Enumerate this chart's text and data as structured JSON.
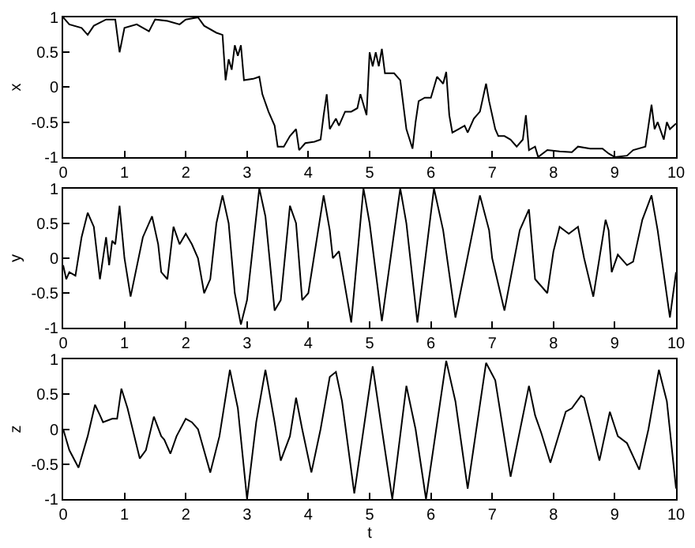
{
  "chart_data": [
    {
      "type": "line",
      "ylabel": "x",
      "xlim": [
        0,
        10
      ],
      "ylim": [
        -1,
        1
      ],
      "xticks": [
        0,
        1,
        2,
        3,
        4,
        5,
        6,
        7,
        8,
        9,
        10
      ],
      "yticks": [
        -1,
        -0.5,
        0,
        0.5,
        1
      ],
      "x": [
        0,
        0.1,
        0.3,
        0.4,
        0.5,
        0.7,
        0.85,
        0.92,
        1.0,
        1.2,
        1.4,
        1.5,
        1.7,
        1.9,
        2.0,
        2.2,
        2.3,
        2.5,
        2.6,
        2.65,
        2.7,
        2.75,
        2.8,
        2.85,
        2.9,
        2.95,
        3.1,
        3.2,
        3.25,
        3.35,
        3.45,
        3.5,
        3.6,
        3.7,
        3.8,
        3.85,
        3.95,
        4.1,
        4.2,
        4.25,
        4.3,
        4.35,
        4.45,
        4.5,
        4.6,
        4.7,
        4.8,
        4.85,
        4.95,
        5.0,
        5.05,
        5.1,
        5.15,
        5.2,
        5.25,
        5.4,
        5.5,
        5.6,
        5.7,
        5.75,
        5.8,
        5.9,
        6.0,
        6.1,
        6.2,
        6.25,
        6.3,
        6.35,
        6.45,
        6.55,
        6.6,
        6.7,
        6.8,
        6.9,
        6.95,
        7.05,
        7.1,
        7.2,
        7.3,
        7.4,
        7.5,
        7.55,
        7.6,
        7.7,
        7.75,
        7.9,
        8.1,
        8.3,
        8.4,
        8.6,
        8.8,
        8.9,
        9.0,
        9.2,
        9.3,
        9.5,
        9.6,
        9.65,
        9.7,
        9.8,
        9.85,
        9.9,
        10
      ],
      "series": [
        {
          "color": "#000000",
          "values": [
            1,
            0.9,
            0.85,
            0.75,
            0.88,
            0.97,
            0.97,
            0.5,
            0.85,
            0.9,
            0.8,
            0.97,
            0.95,
            0.9,
            0.97,
            1.0,
            0.88,
            0.78,
            0.75,
            0.1,
            0.4,
            0.25,
            0.6,
            0.45,
            0.6,
            0.1,
            0.12,
            0.15,
            -0.1,
            -0.35,
            -0.55,
            -0.85,
            -0.85,
            -0.7,
            -0.6,
            -0.9,
            -0.8,
            -0.78,
            -0.75,
            -0.4,
            -0.1,
            -0.6,
            -0.45,
            -0.55,
            -0.35,
            -0.35,
            -0.3,
            -0.1,
            -0.4,
            0.5,
            0.3,
            0.5,
            0.3,
            0.55,
            0.2,
            0.2,
            0.1,
            -0.6,
            -0.88,
            -0.5,
            -0.2,
            -0.15,
            -0.15,
            0.15,
            0.05,
            0.22,
            -0.4,
            -0.65,
            -0.6,
            -0.55,
            -0.65,
            -0.45,
            -0.35,
            0.05,
            -0.2,
            -0.6,
            -0.7,
            -0.7,
            -0.75,
            -0.85,
            -0.75,
            -0.4,
            -0.9,
            -0.85,
            -1.0,
            -0.9,
            -0.92,
            -0.93,
            -0.85,
            -0.88,
            -0.88,
            -0.95,
            -1.0,
            -0.98,
            -0.9,
            -0.85,
            -0.25,
            -0.6,
            -0.5,
            -0.75,
            -0.5,
            -0.6,
            -0.52
          ]
        }
      ]
    },
    {
      "type": "line",
      "ylabel": "y",
      "xlim": [
        0,
        10
      ],
      "ylim": [
        -1,
        1
      ],
      "xticks": [
        0,
        1,
        2,
        3,
        4,
        5,
        6,
        7,
        8,
        9,
        10
      ],
      "yticks": [
        -1,
        -0.5,
        0,
        0.5,
        1
      ],
      "x": [
        0,
        0.05,
        0.1,
        0.2,
        0.3,
        0.4,
        0.5,
        0.6,
        0.7,
        0.75,
        0.8,
        0.85,
        0.92,
        1.0,
        1.1,
        1.3,
        1.45,
        1.55,
        1.6,
        1.7,
        1.8,
        1.9,
        2.0,
        2.1,
        2.2,
        2.3,
        2.4,
        2.5,
        2.6,
        2.7,
        2.8,
        2.9,
        3.0,
        3.2,
        3.3,
        3.45,
        3.55,
        3.7,
        3.8,
        3.9,
        4.0,
        4.25,
        4.35,
        4.4,
        4.5,
        4.7,
        4.9,
        5.0,
        5.2,
        5.5,
        5.6,
        5.78,
        6.05,
        6.2,
        6.4,
        6.8,
        6.95,
        7.0,
        7.2,
        7.45,
        7.6,
        7.7,
        7.9,
        8.0,
        8.1,
        8.25,
        8.4,
        8.5,
        8.65,
        8.85,
        8.9,
        8.95,
        9.05,
        9.2,
        9.3,
        9.45,
        9.6,
        9.7,
        9.9,
        10
      ],
      "series": [
        {
          "color": "#000000",
          "values": [
            -0.1,
            -0.3,
            -0.2,
            -0.25,
            0.3,
            0.65,
            0.45,
            -0.3,
            0.3,
            -0.1,
            0.25,
            0.2,
            0.75,
            0.0,
            -0.55,
            0.3,
            0.6,
            0.2,
            -0.2,
            -0.3,
            0.45,
            0.2,
            0.35,
            0.2,
            0.0,
            -0.5,
            -0.3,
            0.5,
            0.9,
            0.5,
            -0.5,
            -0.95,
            -0.6,
            1.0,
            0.6,
            -0.75,
            -0.6,
            0.75,
            0.5,
            -0.6,
            -0.5,
            0.9,
            0.4,
            0.0,
            0.1,
            -0.92,
            1.0,
            0.5,
            -0.9,
            1.0,
            0.5,
            -0.92,
            1.0,
            0.4,
            -0.85,
            0.9,
            0.4,
            0.0,
            -0.75,
            0.4,
            0.7,
            -0.3,
            -0.5,
            0.1,
            0.45,
            0.35,
            0.45,
            0.0,
            -0.55,
            0.55,
            0.4,
            -0.2,
            0.05,
            -0.1,
            -0.05,
            0.55,
            0.9,
            0.4,
            -0.85,
            -0.2
          ]
        }
      ]
    },
    {
      "type": "line",
      "ylabel": "z",
      "xlabel": "t",
      "xlim": [
        0,
        10
      ],
      "ylim": [
        -1,
        1
      ],
      "xticks": [
        0,
        1,
        2,
        3,
        4,
        5,
        6,
        7,
        8,
        9,
        10
      ],
      "yticks": [
        -1,
        -0.5,
        0,
        0.5,
        1
      ],
      "x": [
        0,
        0.1,
        0.25,
        0.4,
        0.52,
        0.6,
        0.65,
        0.8,
        0.88,
        0.95,
        1.05,
        1.25,
        1.35,
        1.48,
        1.6,
        1.65,
        1.75,
        1.85,
        2.0,
        2.1,
        2.2,
        2.4,
        2.55,
        2.72,
        2.85,
        3.0,
        3.15,
        3.3,
        3.45,
        3.55,
        3.7,
        3.8,
        3.9,
        4.05,
        4.2,
        4.35,
        4.45,
        4.55,
        4.75,
        5.05,
        5.2,
        5.37,
        5.6,
        5.75,
        5.92,
        6.25,
        6.4,
        6.6,
        6.9,
        7.05,
        7.3,
        7.6,
        7.7,
        7.8,
        7.95,
        8.2,
        8.3,
        8.45,
        8.5,
        8.6,
        8.75,
        8.92,
        9.05,
        9.2,
        9.4,
        9.55,
        9.72,
        9.85,
        10
      ],
      "series": [
        {
          "color": "#000000",
          "values": [
            0,
            -0.3,
            -0.55,
            -0.1,
            0.35,
            0.2,
            0.1,
            0.15,
            0.15,
            0.58,
            0.3,
            -0.42,
            -0.3,
            0.18,
            -0.1,
            -0.15,
            -0.35,
            -0.1,
            0.15,
            0.1,
            0.0,
            -0.62,
            -0.1,
            0.85,
            0.3,
            -1.0,
            0.1,
            0.85,
            0.1,
            -0.45,
            -0.1,
            0.45,
            0.0,
            -0.62,
            0.0,
            0.75,
            0.82,
            0.4,
            -0.92,
            0.9,
            0.0,
            -1.0,
            0.62,
            0.0,
            -1.0,
            0.98,
            0.4,
            -0.85,
            0.95,
            0.7,
            -0.68,
            0.62,
            0.2,
            -0.05,
            -0.48,
            0.25,
            0.3,
            0.48,
            0.45,
            0.1,
            -0.45,
            0.25,
            -0.1,
            -0.2,
            -0.58,
            0.0,
            0.85,
            0.4,
            -0.85
          ]
        }
      ]
    }
  ]
}
